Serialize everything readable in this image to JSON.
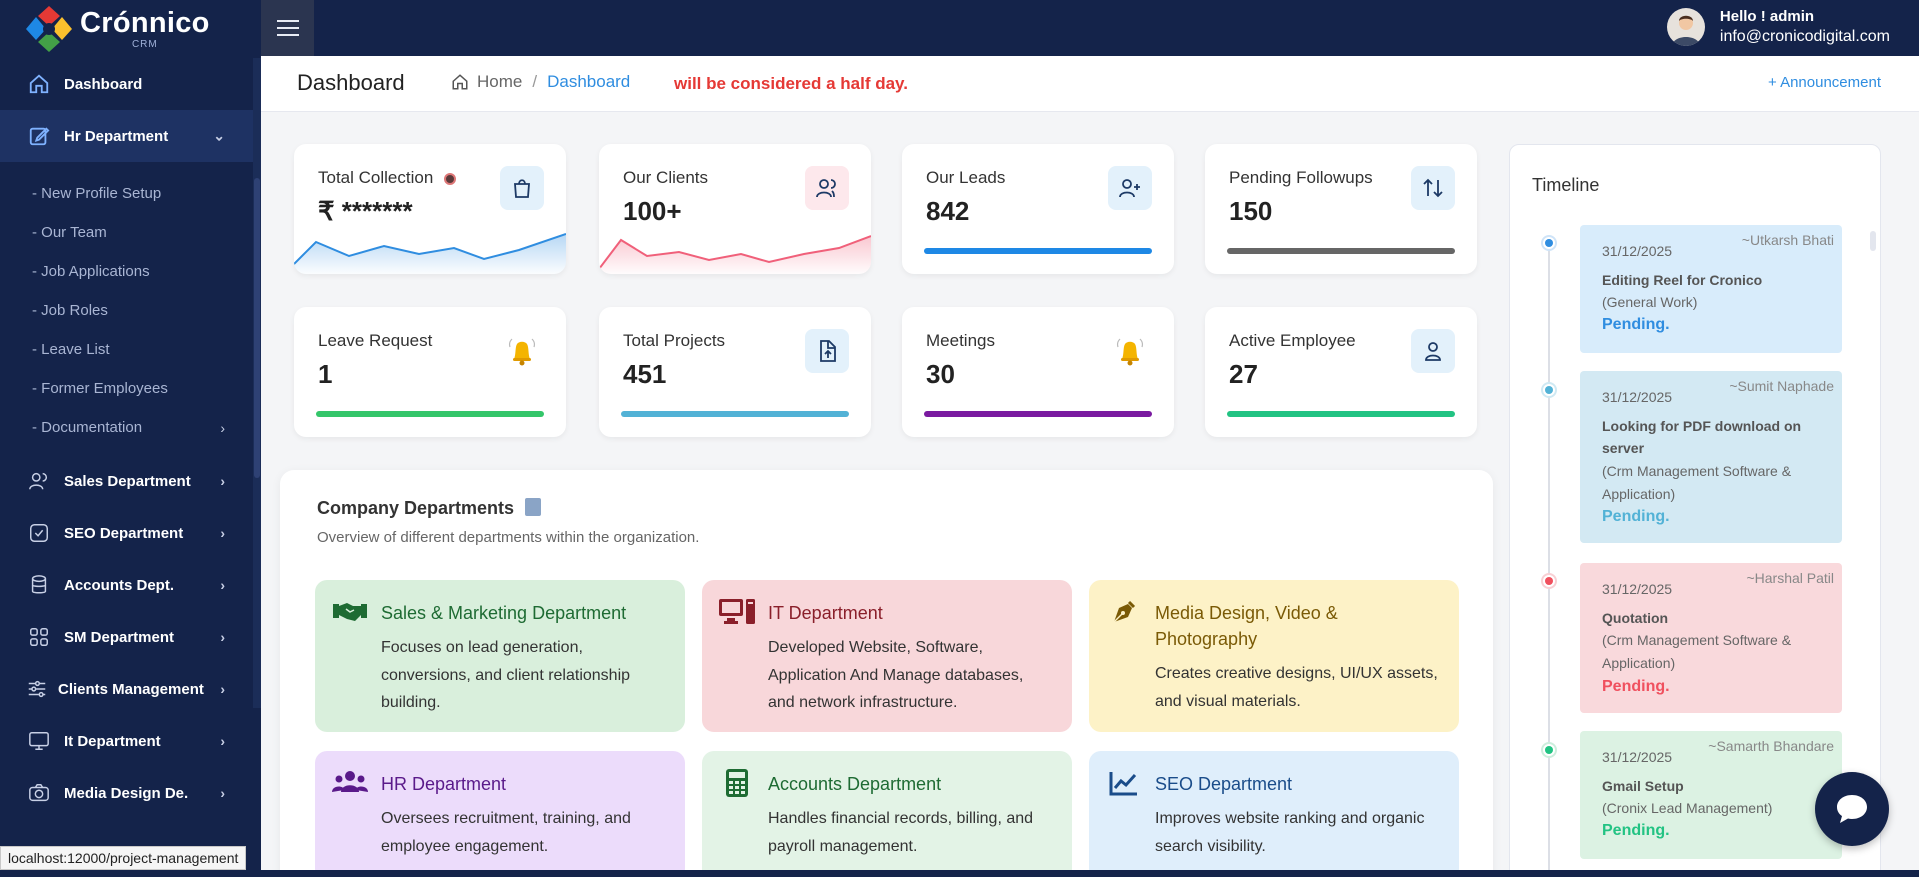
{
  "brand": {
    "name": "Crónnico",
    "sub": "CRM"
  },
  "sidebar": {
    "items": [
      {
        "label": "Dashboard",
        "icon": "home-icon",
        "active": false
      },
      {
        "label": "Hr Department",
        "icon": "edit-icon",
        "active": true,
        "expanded": true
      }
    ],
    "hr_sub": [
      {
        "label": "- New Profile Setup"
      },
      {
        "label": "- Our Team"
      },
      {
        "label": "- Job Applications"
      },
      {
        "label": "- Job Roles"
      },
      {
        "label": "- Leave List"
      },
      {
        "label": "- Former Employees"
      },
      {
        "label": "- Documentation"
      }
    ],
    "more": [
      {
        "label": "Sales Department",
        "icon": "users-icon"
      },
      {
        "label": "SEO Department",
        "icon": "check-square-icon"
      },
      {
        "label": "Accounts Dept.",
        "icon": "database-icon"
      },
      {
        "label": "SM Department",
        "icon": "grid-icon"
      },
      {
        "label": "Clients Management",
        "icon": "sliders-icon"
      },
      {
        "label": "It Department",
        "icon": "monitor-icon"
      },
      {
        "label": "Media Design De.",
        "icon": "camera-icon"
      }
    ]
  },
  "topbar": {
    "hello": "Hello ! admin",
    "email": "info@cronicodigital.com"
  },
  "breadcrumb": {
    "title": "Dashboard",
    "home": "Home",
    "sep": "/",
    "current": "Dashboard",
    "marquee": "will be considered a half day.",
    "announcement": "+ Announcement"
  },
  "stats": [
    {
      "label": "Total Collection",
      "value": "₹ *******",
      "icon": "shopping-bag-icon",
      "color": "#2f8de0"
    },
    {
      "label": "Our Clients",
      "value": "100+",
      "icon": "users-icon",
      "color": "#f0607a"
    },
    {
      "label": "Our Leads",
      "value": "842",
      "icon": "user-plus-icon",
      "color": "#1e88e5",
      "progress": 1
    },
    {
      "label": "Pending Followups",
      "value": "150",
      "icon": "swap-icon",
      "color": "#666666",
      "progress": 1
    },
    {
      "label": "Leave Request",
      "value": "1",
      "icon": "bell-icon",
      "color": "#34c66a",
      "progress": 1
    },
    {
      "label": "Total Projects",
      "value": "451",
      "icon": "file-upload-icon",
      "color": "#52b2d6",
      "progress": 1
    },
    {
      "label": "Meetings",
      "value": "30",
      "icon": "bell-icon",
      "color": "#7a1aa0",
      "progress": 1
    },
    {
      "label": "Active Employee",
      "value": "27",
      "icon": "user-icon",
      "color": "#22c383",
      "progress": 1
    }
  ],
  "departments": {
    "title": "Company Departments",
    "subtitle": "Overview of different departments within the organization.",
    "items": [
      {
        "name": "Sales & Marketing Department",
        "desc": "Focuses on lead generation, conversions, and client relationship building.",
        "icon": "handshake-icon",
        "bg": "#d9efdc",
        "color": "#1e6b33"
      },
      {
        "name": "IT Department",
        "desc": "Developed Website, Software, Application And Manage databases, and network infrastructure.",
        "icon": "computer-icon",
        "bg": "#f8d7da",
        "color": "#8a1f2a"
      },
      {
        "name": "Media Design, Video & Photography",
        "desc": "Creates creative designs, UI/UX assets, and visual materials.",
        "icon": "pen-nib-icon",
        "bg": "#fdf2c7",
        "color": "#7a5a06"
      },
      {
        "name": "HR Department",
        "desc": "Oversees recruitment, training, and employee engagement.",
        "icon": "people-group-icon",
        "bg": "#ecdcfb",
        "color": "#5a1a8a"
      },
      {
        "name": "Accounts Department",
        "desc": "Handles financial records, billing, and payroll management.",
        "icon": "calculator-icon",
        "bg": "#e3f3e6",
        "color": "#1e6b33"
      },
      {
        "name": "SEO Department",
        "desc": "Improves website ranking and organic search visibility.",
        "icon": "chart-line-icon",
        "bg": "#dfeefb",
        "color": "#1a4c8a"
      }
    ]
  },
  "timeline": {
    "title": "Timeline",
    "items": [
      {
        "date": "31/12/2025",
        "by": "~Utkarsh Bhati",
        "title": "Editing Reel for Cronico",
        "category": "(General Work)",
        "status": "Pending.",
        "bg": "#d8ecfb",
        "dot": "#2f8de0",
        "status_color": "#2f8de0"
      },
      {
        "date": "31/12/2025",
        "by": "~Sumit Naphade",
        "title": "Looking for PDF download on server",
        "category": "(Crm Management Software & Application)",
        "status": "Pending.",
        "bg": "#d3e9f3",
        "dot": "#52b2d6",
        "status_color": "#52b2d6"
      },
      {
        "date": "31/12/2025",
        "by": "~Harshal Patil",
        "title": "Quotation",
        "category": "(Crm Management Software & Application)",
        "status": "Pending.",
        "bg": "#f9d9dc",
        "dot": "#f0505e",
        "status_color": "#f0505e"
      },
      {
        "date": "31/12/2025",
        "by": "~Samarth Bhandare",
        "title": "Gmail Setup",
        "category": "(Cronix Lead Management)",
        "status": "Pending.",
        "bg": "#dcf2e3",
        "dot": "#22c383",
        "status_color": "#22c383"
      }
    ]
  },
  "status_bar": {
    "url": "localhost:12000/project-management"
  }
}
